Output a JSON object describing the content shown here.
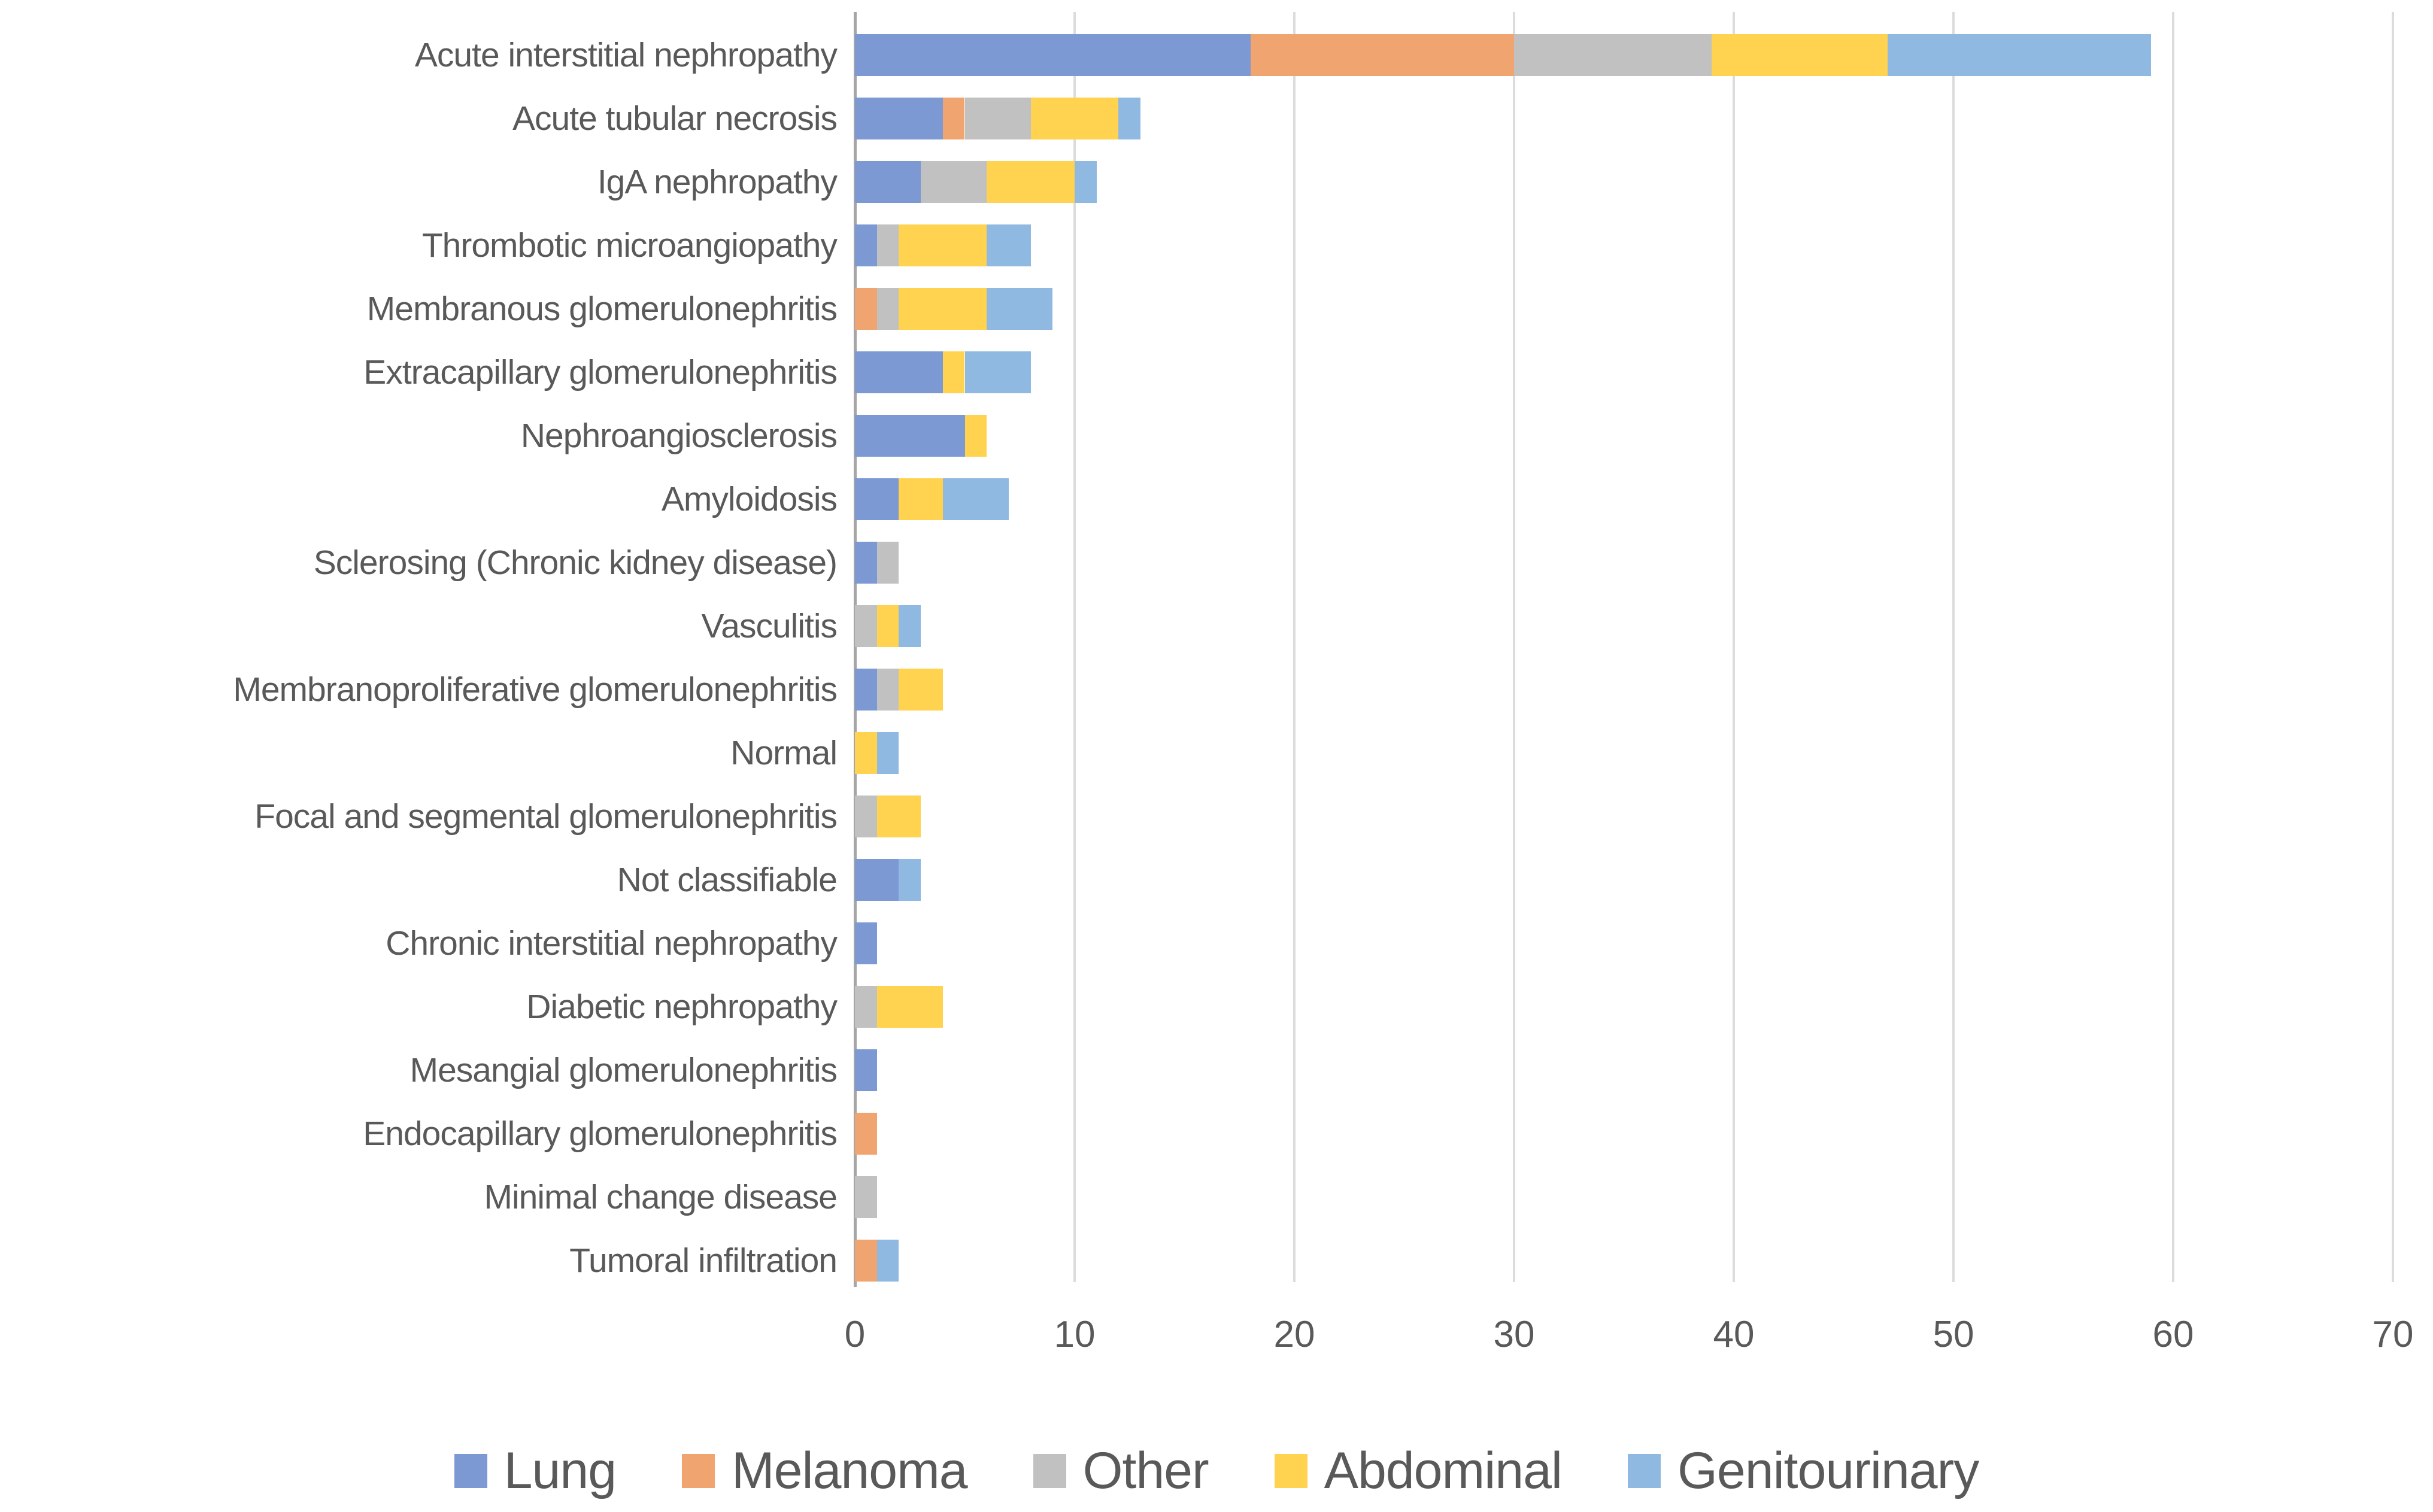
{
  "chart_data": {
    "type": "bar",
    "variant": "horizontal-stacked",
    "title": "",
    "categories": [
      "Acute interstitial nephropathy",
      "Acute tubular necrosis",
      "IgA nephropathy",
      "Thrombotic microangiopathy",
      "Membranous glomerulonephritis",
      "Extracapillary glomerulonephritis",
      "Nephroangiosclerosis",
      "Amyloidosis",
      "Sclerosing (Chronic kidney disease)",
      "Vasculitis",
      "Membranoproliferative glomerulonephritis",
      "Normal",
      "Focal and segmental glomerulonephritis",
      "Not classifiable",
      "Chronic interstitial nephropathy",
      "Diabetic nephropathy",
      "Mesangial glomerulonephritis",
      "Endocapillary glomerulonephritis",
      "Minimal change disease",
      "Tumoral infiltration"
    ],
    "series": [
      {
        "name": "Lung",
        "color": "#7C99D3",
        "values": [
          18,
          4,
          3,
          1,
          0,
          4,
          5,
          2,
          1,
          0,
          1,
          0,
          0,
          2,
          1,
          0,
          1,
          0,
          0,
          0
        ]
      },
      {
        "name": "Melanoma",
        "color": "#F0A470",
        "values": [
          12,
          1,
          0,
          0,
          1,
          0,
          0,
          0,
          0,
          0,
          0,
          0,
          0,
          0,
          0,
          0,
          0,
          1,
          0,
          1
        ]
      },
      {
        "name": "Other",
        "color": "#C1C1C1",
        "values": [
          9,
          3,
          3,
          1,
          1,
          0,
          0,
          0,
          1,
          1,
          1,
          0,
          1,
          0,
          0,
          1,
          0,
          0,
          1,
          0
        ]
      },
      {
        "name": "Abdominal",
        "color": "#FFD34F",
        "values": [
          8,
          4,
          4,
          4,
          4,
          1,
          1,
          2,
          0,
          1,
          2,
          1,
          2,
          0,
          0,
          3,
          0,
          0,
          0,
          0
        ]
      },
      {
        "name": "Genitourinary",
        "color": "#8FB9E0",
        "values": [
          12,
          1,
          1,
          2,
          3,
          3,
          0,
          3,
          0,
          1,
          0,
          1,
          0,
          1,
          0,
          0,
          0,
          0,
          0,
          1
        ]
      }
    ],
    "x_axis": {
      "min": 0,
      "max": 70,
      "ticks": [
        0,
        10,
        20,
        30,
        40,
        50,
        60,
        70
      ]
    },
    "grid": true,
    "legend_position": "bottom"
  },
  "styles": {
    "text_color": "#595959",
    "gridline_color": "#DCDCDC",
    "axis_line_color": "#A6A6A6",
    "background_color": "#FFFFFF"
  }
}
